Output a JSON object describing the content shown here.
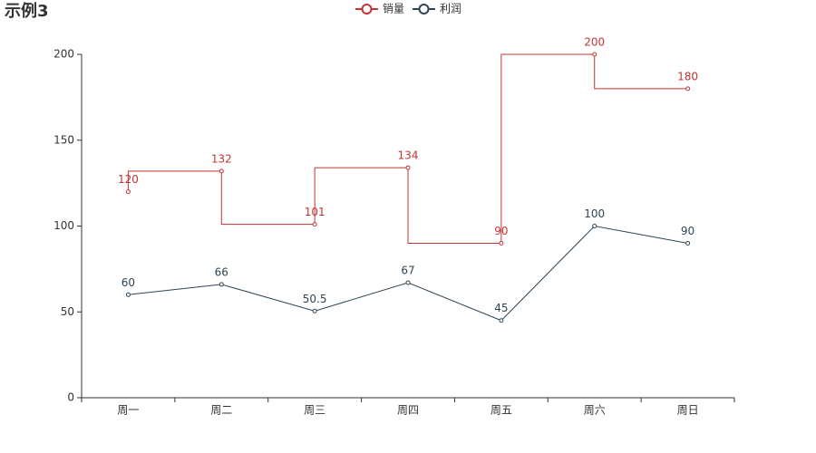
{
  "chart_data": {
    "type": "line",
    "title": "示例3",
    "categories": [
      "周一",
      "周二",
      "周三",
      "周四",
      "周五",
      "周六",
      "周日"
    ],
    "series": [
      {
        "name": "销量",
        "color": "#c23531",
        "step": "start",
        "values": [
          120,
          132,
          101,
          134,
          90,
          200,
          180
        ]
      },
      {
        "name": "利润",
        "color": "#2f4554",
        "values": [
          60,
          66,
          50.5,
          67,
          45,
          100,
          90
        ]
      }
    ],
    "ylim": [
      0,
      200
    ],
    "yticks": [
      0,
      50,
      100,
      150,
      200
    ],
    "grid": false,
    "legend": "top"
  }
}
